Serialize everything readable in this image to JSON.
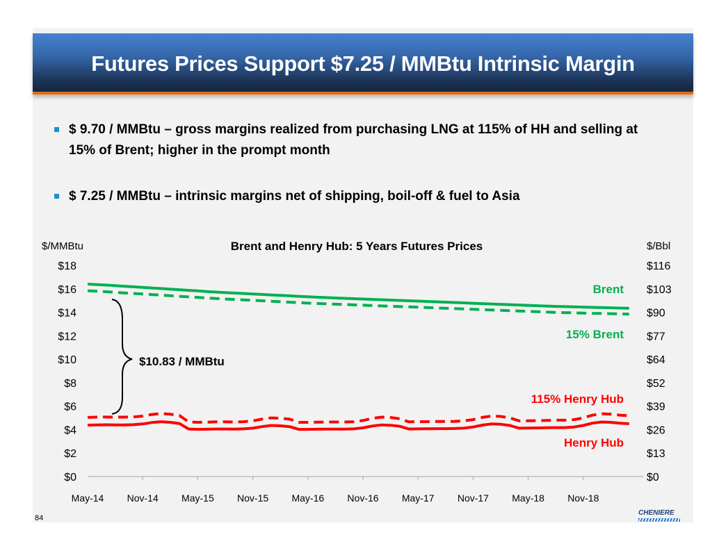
{
  "title": "Futures Prices Support $7.25 / MMBtu Intrinsic Margin",
  "bullets": [
    "$  9.70 / MMBtu – gross margins realized from purchasing LNG at 115% of HH and selling at 15% of Brent; higher in the prompt month",
    "$ 7.25 / MMBtu – intrinsic margins net of shipping, boil-off & fuel to Asia"
  ],
  "page_number": "84",
  "logo_text": "CHENIERE",
  "chart_data": {
    "type": "line",
    "title": "Brent and Henry Hub:  5 Years Futures Prices",
    "ylabel": "$/MMBtu",
    "y2label": "$/Bbl",
    "ylim": [
      0,
      18
    ],
    "yticks": [
      "$0",
      "$2",
      "$4",
      "$6",
      "$8",
      "$10",
      "$12",
      "$14",
      "$16",
      "$18"
    ],
    "y2ticks": [
      "$0",
      "$13",
      "$26",
      "$39",
      "$52",
      "$64",
      "$77",
      "$90",
      "$103",
      "$116"
    ],
    "xticks": [
      "May-14",
      "Nov-14",
      "May-15",
      "Nov-15",
      "May-16",
      "Nov-16",
      "May-17",
      "Nov-17",
      "May-18",
      "Nov-18"
    ],
    "x_start": "May-14",
    "x_end": "Apr-19",
    "grid": false,
    "annotation": "$10.83 / MMBtu",
    "series": [
      {
        "name": "Brent",
        "color": "#00b050",
        "dash": false,
        "values": [
          16.4,
          16.36,
          16.32,
          16.27,
          16.22,
          16.17,
          16.12,
          16.07,
          16.02,
          15.97,
          15.92,
          15.87,
          15.82,
          15.77,
          15.72,
          15.68,
          15.64,
          15.6,
          15.56,
          15.52,
          15.48,
          15.44,
          15.4,
          15.36,
          15.32,
          15.28,
          15.25,
          15.22,
          15.19,
          15.16,
          15.13,
          15.1,
          15.07,
          15.04,
          15.01,
          14.98,
          14.95,
          14.92,
          14.89,
          14.86,
          14.83,
          14.8,
          14.77,
          14.74,
          14.71,
          14.68,
          14.65,
          14.62,
          14.59,
          14.56,
          14.53,
          14.5,
          14.48,
          14.46,
          14.44,
          14.42,
          14.4,
          14.38,
          14.36,
          14.34
        ]
      },
      {
        "name": "15% Brent",
        "color": "#00b050",
        "dash": true,
        "values": [
          15.83,
          15.79,
          15.75,
          15.7,
          15.65,
          15.6,
          15.56,
          15.51,
          15.46,
          15.41,
          15.36,
          15.31,
          15.27,
          15.22,
          15.17,
          15.13,
          15.09,
          15.05,
          15.02,
          14.98,
          14.94,
          14.9,
          14.86,
          14.82,
          14.78,
          14.75,
          14.72,
          14.69,
          14.66,
          14.63,
          14.6,
          14.57,
          14.54,
          14.51,
          14.48,
          14.46,
          14.43,
          14.4,
          14.37,
          14.34,
          14.31,
          14.28,
          14.25,
          14.22,
          14.19,
          14.17,
          14.14,
          14.11,
          14.08,
          14.05,
          14.02,
          13.99,
          13.97,
          13.95,
          13.93,
          13.91,
          13.9,
          13.88,
          13.86,
          13.84
        ]
      },
      {
        "name": "115% Henry Hub",
        "color": "#ff0000",
        "dash": true,
        "values": [
          5.04,
          5.06,
          5.07,
          5.06,
          5.06,
          5.08,
          5.15,
          5.29,
          5.37,
          5.31,
          5.2,
          4.66,
          4.62,
          4.63,
          4.66,
          4.66,
          4.65,
          4.67,
          4.74,
          4.89,
          5.0,
          4.97,
          4.89,
          4.62,
          4.62,
          4.63,
          4.65,
          4.65,
          4.65,
          4.67,
          4.77,
          4.95,
          5.06,
          5.03,
          4.92,
          4.66,
          4.67,
          4.68,
          4.69,
          4.69,
          4.7,
          4.74,
          4.85,
          5.04,
          5.15,
          5.12,
          5.0,
          4.74,
          4.75,
          4.76,
          4.78,
          4.8,
          4.8,
          4.85,
          5.0,
          5.23,
          5.35,
          5.31,
          5.23,
          5.18
        ]
      },
      {
        "name": "Henry Hub",
        "color": "#ff0000",
        "dash": false,
        "values": [
          4.38,
          4.4,
          4.41,
          4.4,
          4.4,
          4.42,
          4.48,
          4.6,
          4.67,
          4.62,
          4.52,
          4.05,
          4.02,
          4.03,
          4.05,
          4.05,
          4.04,
          4.06,
          4.12,
          4.25,
          4.35,
          4.32,
          4.25,
          4.02,
          4.02,
          4.03,
          4.04,
          4.04,
          4.04,
          4.06,
          4.15,
          4.3,
          4.4,
          4.37,
          4.28,
          4.05,
          4.06,
          4.07,
          4.08,
          4.08,
          4.09,
          4.12,
          4.22,
          4.38,
          4.48,
          4.45,
          4.35,
          4.12,
          4.13,
          4.14,
          4.16,
          4.17,
          4.17,
          4.22,
          4.35,
          4.55,
          4.65,
          4.62,
          4.55,
          4.5
        ]
      }
    ]
  }
}
